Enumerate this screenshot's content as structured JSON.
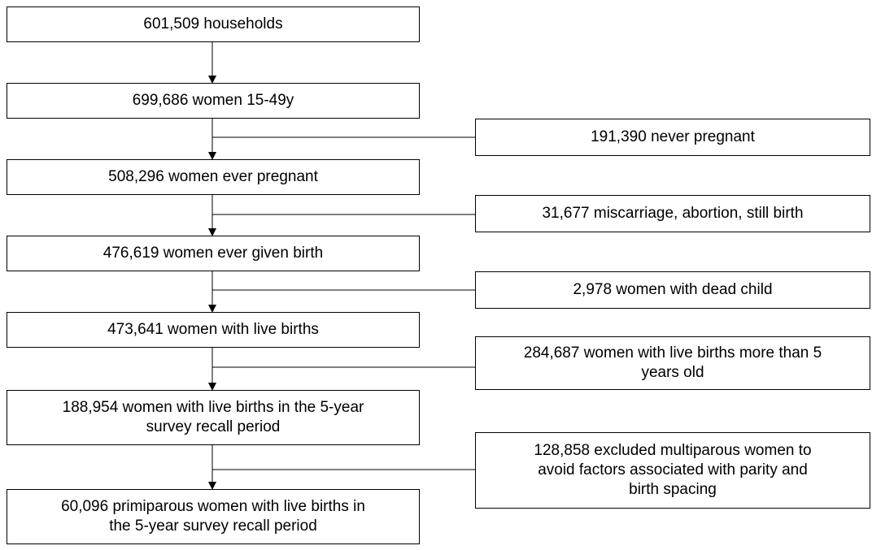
{
  "nodes": [
    {
      "lines": [
        "601,509 households"
      ]
    },
    {
      "lines": [
        "699,686 women 15-49y"
      ]
    },
    {
      "lines": [
        "508,296 women ever pregnant"
      ]
    },
    {
      "lines": [
        "476,619 women ever given birth"
      ]
    },
    {
      "lines": [
        "473,641 women with live births"
      ]
    },
    {
      "lines": [
        "188,954 women with live births in the 5-year",
        "survey recall period"
      ]
    },
    {
      "lines": [
        "60,096 primiparous women with live births in",
        "the 5-year survey recall period"
      ]
    }
  ],
  "exclusions": [
    {
      "lines": [
        "191,390 never pregnant"
      ]
    },
    {
      "lines": [
        "31,677 miscarriage, abortion, still birth"
      ]
    },
    {
      "lines": [
        "2,978 women with dead child"
      ]
    },
    {
      "lines": [
        "284,687 women with live births more than 5",
        "years old"
      ]
    },
    {
      "lines": [
        "128,858 excluded multiparous women to",
        "avoid factors associated with parity and",
        "birth spacing"
      ]
    }
  ]
}
